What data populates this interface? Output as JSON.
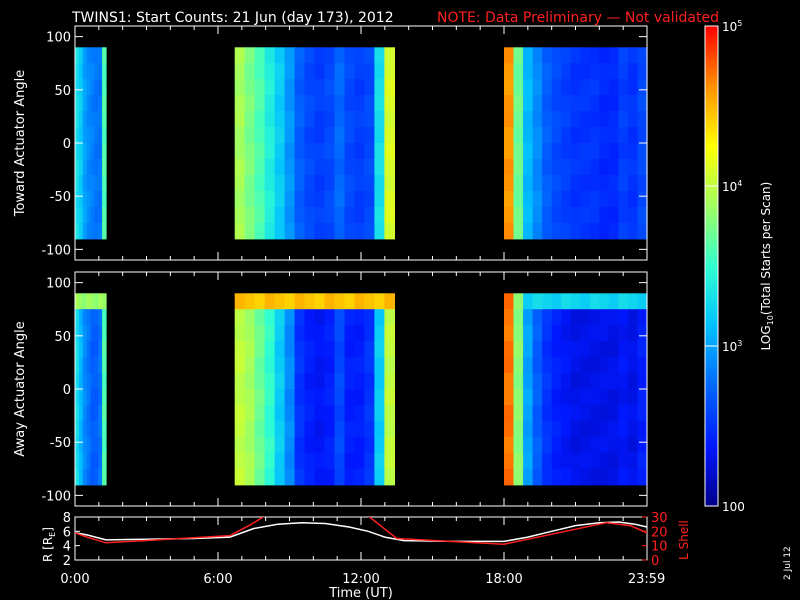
{
  "title": {
    "main": "TWINS1: Start Counts: 21 Jun (day 173), 2012",
    "note": "NOTE: Data Preliminary — Not validated"
  },
  "date_stamp": "2 Jul 12",
  "colors": {
    "background": "#000000",
    "axes": "#ffffff",
    "note": "#ff2020",
    "r_line": "#ffffff",
    "l_shell_line": "#ff2020"
  },
  "colormap": [
    "#00008c",
    "#0018ff",
    "#0068ff",
    "#00c0ff",
    "#30ffd0",
    "#a0ff60",
    "#ffff00",
    "#ff9000",
    "#ff0000"
  ],
  "colorbar": {
    "label": "LOG10(Total Starts per Scan)",
    "label_text": "LOG",
    "label_sub": "10",
    "label_rest": "(Total Starts per Scan)",
    "range_log": [
      2,
      5
    ],
    "ticks": [
      {
        "value": 100,
        "text": "100",
        "base": "",
        "exp": ""
      },
      {
        "value": 1000,
        "text": "",
        "base": "10",
        "exp": "3"
      },
      {
        "value": 10000,
        "text": "",
        "base": "10",
        "exp": "4"
      },
      {
        "value": 100000,
        "text": "",
        "base": "10",
        "exp": "5"
      }
    ]
  },
  "chart_data": [
    {
      "type": "heatmap",
      "ylabel": "Toward Actuator Angle",
      "xlim_hours": [
        0,
        24
      ],
      "ylim": [
        -110,
        110
      ],
      "yticks": [
        {
          "v": 100,
          "t": "100"
        },
        {
          "v": 50,
          "t": "50"
        },
        {
          "v": 0,
          "t": "0"
        },
        {
          "v": -50,
          "t": "-50"
        },
        {
          "v": -100,
          "t": "-100"
        }
      ],
      "data_angle_range": [
        -90,
        90
      ],
      "segments": [
        {
          "start": 0.0,
          "end": 1.3,
          "levels": [
            3.3,
            3.2,
            3.0,
            2.9,
            2.85,
            2.8,
            2.8,
            3.6
          ]
        },
        {
          "start": 6.7,
          "end": 13.4,
          "levels": [
            3.9,
            3.75,
            3.6,
            3.4,
            3.2,
            2.95,
            2.7,
            2.6,
            2.55,
            2.6,
            2.75,
            2.6,
            2.55,
            2.6,
            3.3,
            4.1
          ]
        },
        {
          "start": 18.0,
          "end": 24.0,
          "levels": [
            4.6,
            3.7,
            3.1,
            2.9,
            2.7,
            2.6,
            2.55,
            2.5,
            2.5,
            2.5,
            2.45,
            2.45,
            2.55,
            2.5,
            2.6
          ]
        }
      ]
    },
    {
      "type": "heatmap",
      "ylabel": "Away Actuator Angle",
      "xlim_hours": [
        0,
        24
      ],
      "ylim": [
        -110,
        110
      ],
      "yticks": [
        {
          "v": 100,
          "t": "100"
        },
        {
          "v": 50,
          "t": "50"
        },
        {
          "v": 0,
          "t": "0"
        },
        {
          "v": -50,
          "t": "-50"
        },
        {
          "v": -100,
          "t": "-100"
        }
      ],
      "data_angle_range": [
        -90,
        90
      ],
      "segments": [
        {
          "start": 0.0,
          "end": 1.3,
          "levels": [
            3.3,
            3.1,
            2.9,
            2.8,
            2.7,
            2.7,
            2.8,
            3.6
          ],
          "top_band": {
            "from": 72,
            "level": 3.9
          }
        },
        {
          "start": 6.7,
          "end": 13.4,
          "levels": [
            4.0,
            3.9,
            3.7,
            3.5,
            3.2,
            2.9,
            2.5,
            2.4,
            2.35,
            2.4,
            2.6,
            2.4,
            2.4,
            2.5,
            3.2,
            4.0
          ],
          "top_band": {
            "from": 75,
            "level": 4.5
          }
        },
        {
          "start": 18.0,
          "end": 24.0,
          "levels": [
            4.7,
            3.8,
            3.0,
            2.7,
            2.5,
            2.4,
            2.35,
            2.3,
            2.3,
            2.3,
            2.3,
            2.3,
            2.35,
            2.3,
            2.4
          ],
          "top_band": {
            "from": 70,
            "level": 3.3
          }
        }
      ]
    },
    {
      "type": "line",
      "xlabel": "Time (UT)",
      "xlim_hours": [
        0,
        24
      ],
      "xticks": [
        {
          "v": 0,
          "t": "0:00"
        },
        {
          "v": 6,
          "t": "6:00"
        },
        {
          "v": 12,
          "t": "12:00"
        },
        {
          "v": 18,
          "t": "18:00"
        },
        {
          "v": 23.983,
          "t": "23:59"
        }
      ],
      "ylabel_left": "R [R",
      "ylabel_left_sub": "E",
      "ylabel_left_end": "]",
      "yticks_left": [
        {
          "v": 2,
          "t": "2"
        },
        {
          "v": 4,
          "t": "4"
        },
        {
          "v": 6,
          "t": "6"
        },
        {
          "v": 8,
          "t": "8"
        }
      ],
      "ylim_left": [
        2,
        8
      ],
      "ylabel_right": "L Shell",
      "yticks_right": [
        {
          "v": 0,
          "t": "0"
        },
        {
          "v": 10,
          "t": "10"
        },
        {
          "v": 20,
          "t": "20"
        },
        {
          "v": 30,
          "t": "30"
        }
      ],
      "ylim_right": [
        0,
        30
      ],
      "series": [
        {
          "name": "R",
          "axis": "left",
          "x": [
            0,
            0.5,
            1.3,
            3,
            5,
            6.5,
            7.5,
            8.5,
            9.5,
            10.5,
            11.5,
            12.3,
            13,
            13.8,
            16,
            18,
            19,
            20,
            21,
            22,
            22.8,
            23.5,
            24
          ],
          "y": [
            5.8,
            5.5,
            4.8,
            4.9,
            5.0,
            5.2,
            6.4,
            7.0,
            7.2,
            7.1,
            6.6,
            6.0,
            5.2,
            4.7,
            4.6,
            4.6,
            5.2,
            6.0,
            6.8,
            7.2,
            7.3,
            7.0,
            6.6
          ]
        },
        {
          "name": "L Shell",
          "axis": "right",
          "x": [
            0,
            0.5,
            1.3,
            6.5,
            7.3,
            8.1,
            12.2,
            13.5,
            18,
            22.3,
            23.3,
            24
          ],
          "y": [
            19,
            16,
            12,
            17,
            24,
            32,
            32,
            15,
            11,
            26,
            24,
            19
          ]
        }
      ]
    }
  ]
}
